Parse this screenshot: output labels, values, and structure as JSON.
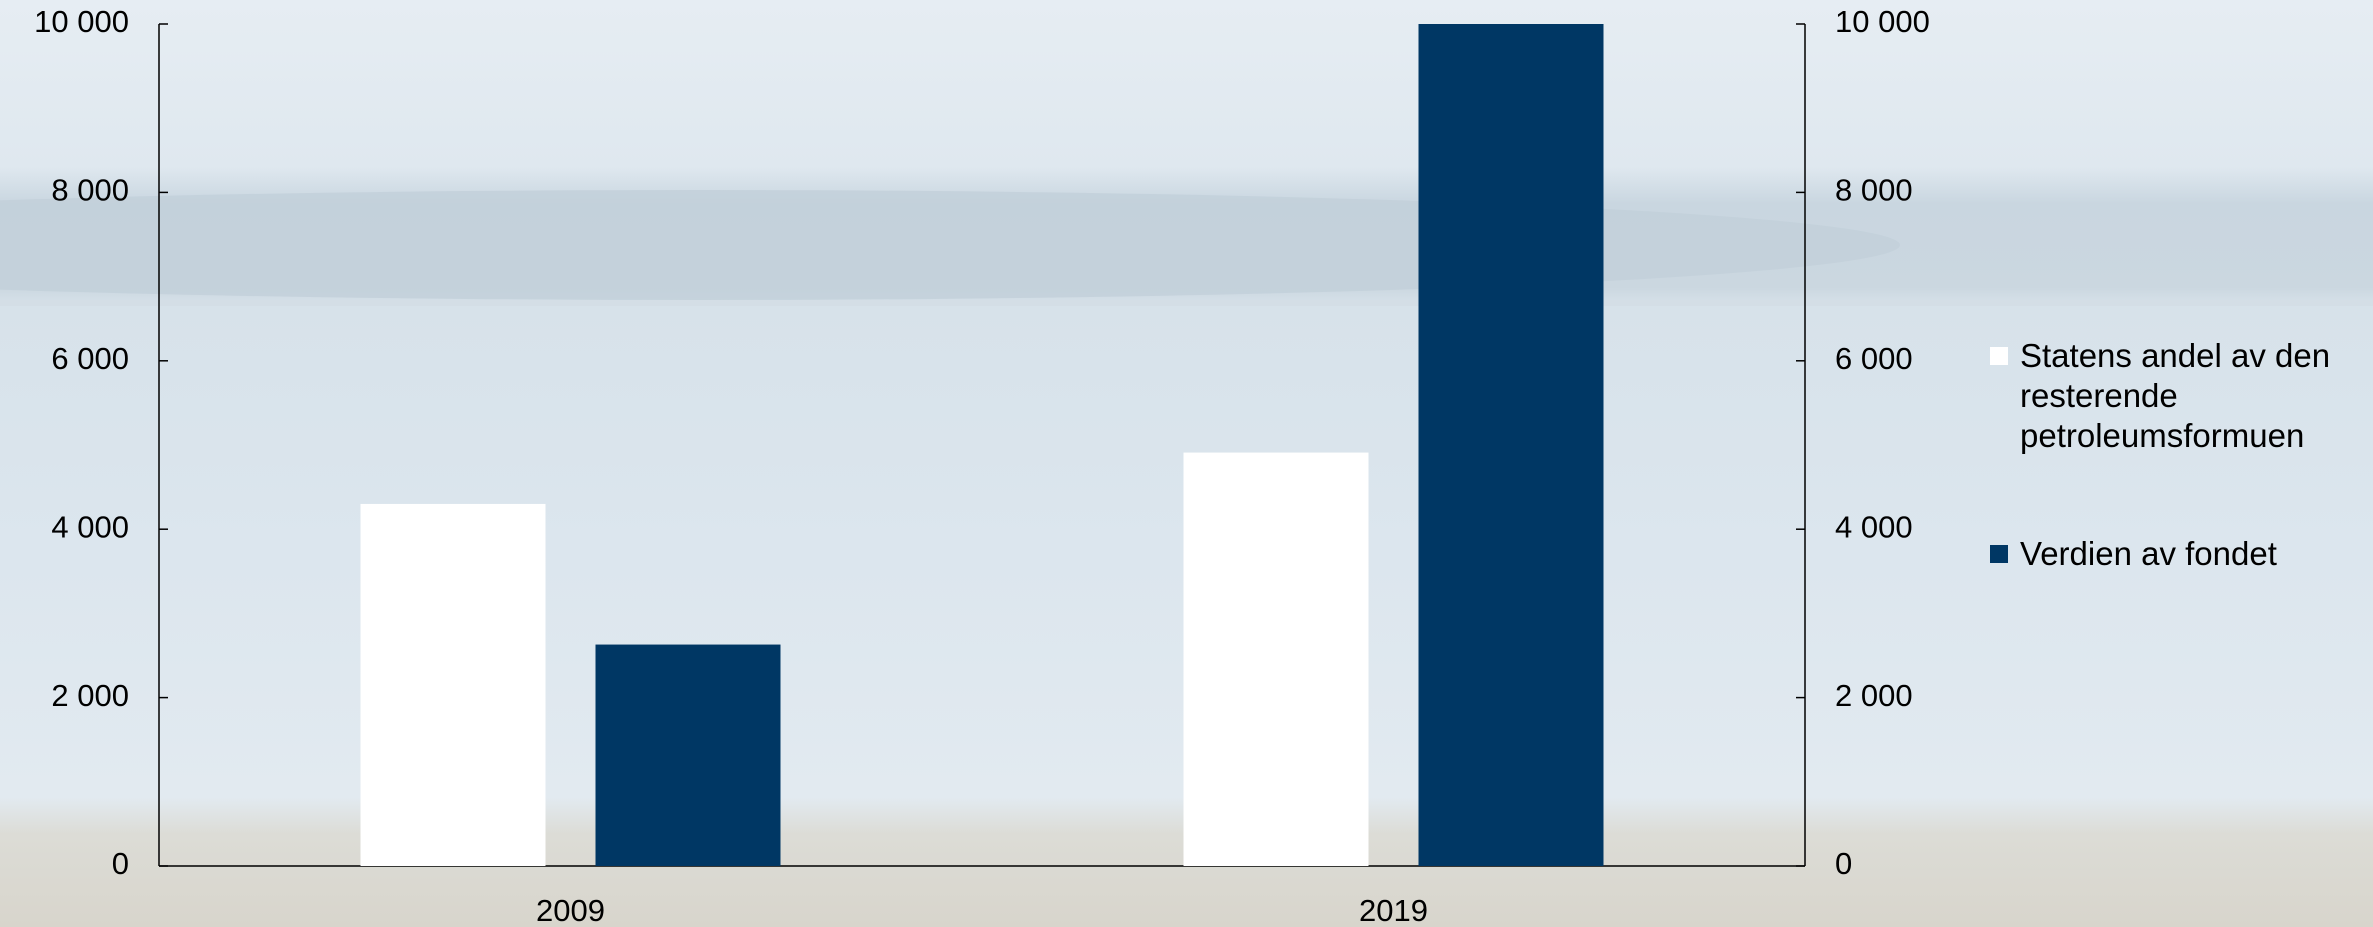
{
  "chart_data": {
    "type": "bar",
    "categories": [
      "2009",
      "2019"
    ],
    "series": [
      {
        "name": "Statens andel av den resterende petroleumsformuen",
        "color": "#ffffff",
        "values": [
          4300,
          4910
        ]
      },
      {
        "name": "Verdien av fondet",
        "color": "#003764",
        "values": [
          2630,
          10000
        ]
      }
    ],
    "ylim": [
      0,
      10000
    ],
    "yticks": [
      0,
      {
        "value": 2000,
        "label": "2 000"
      },
      {
        "value": 4000,
        "label": "4 000"
      },
      {
        "value": 6000,
        "label": "6 000"
      },
      {
        "value": 8000,
        "label": "8 000"
      },
      {
        "value": 10000,
        "label": "10 000"
      }
    ],
    "y2lim": [
      0,
      10000
    ],
    "y2ticks": [
      0,
      {
        "value": 2000,
        "label": "2 000"
      },
      {
        "value": 4000,
        "label": "4 000"
      },
      {
        "value": 6000,
        "label": "6 000"
      },
      {
        "value": 8000,
        "label": "8 000"
      },
      {
        "value": 10000,
        "label": "10 000"
      }
    ],
    "legend": "right"
  }
}
